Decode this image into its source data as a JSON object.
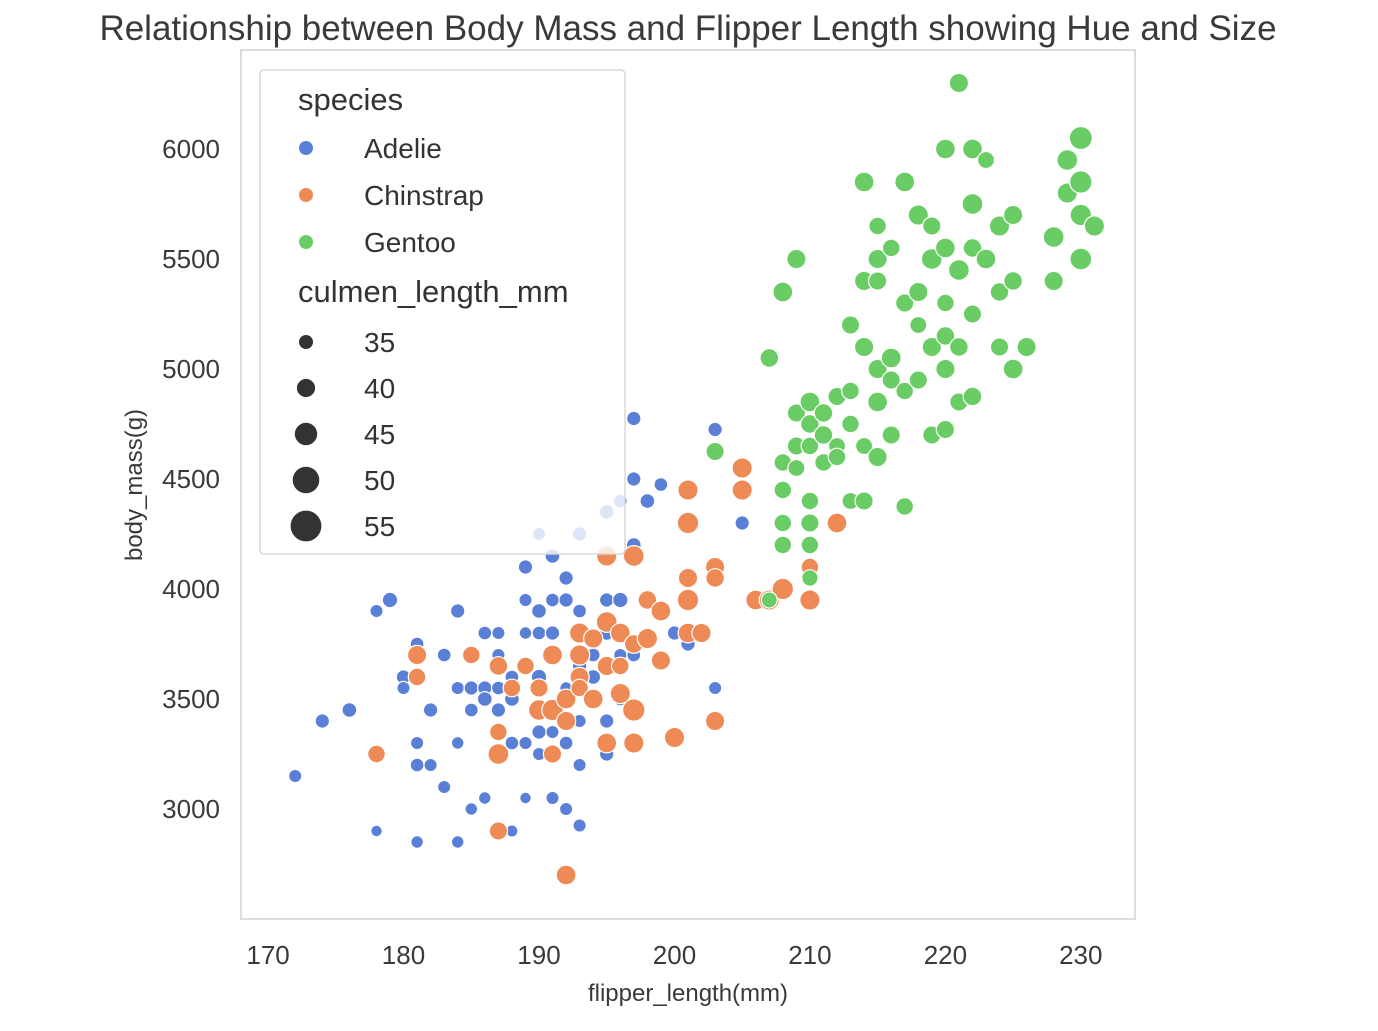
{
  "chart_data": {
    "type": "scatter",
    "title": "Relationship between Body Mass and Flipper Length showing Hue and Size",
    "xlabel": "flipper_length(mm)",
    "ylabel": "body_mass(g)",
    "xlim": [
      168,
      234
    ],
    "ylim": [
      2500,
      6450
    ],
    "xticks": [
      170,
      180,
      190,
      200,
      210,
      220,
      230
    ],
    "yticks": [
      3000,
      3500,
      4000,
      4500,
      5000,
      5500,
      6000
    ],
    "grid": false,
    "legend_position": "upper-left",
    "hue": {
      "title": "species",
      "entries": [
        {
          "name": "Adelie",
          "color": "#5a7fd6"
        },
        {
          "name": "Chinstrap",
          "color": "#ee8a55"
        },
        {
          "name": "Gentoo",
          "color": "#6acc65"
        }
      ]
    },
    "size": {
      "title": "culmen_length_mm",
      "entries": [
        {
          "label": "35",
          "value": 35
        },
        {
          "label": "40",
          "value": 40
        },
        {
          "label": "45",
          "value": 45
        },
        {
          "label": "50",
          "value": 50
        },
        {
          "label": "55",
          "value": 55
        }
      ]
    },
    "series": [
      {
        "name": "Adelie",
        "points": [
          [
            172,
            3150,
            38
          ],
          [
            174,
            3400,
            40
          ],
          [
            176,
            3450,
            41
          ],
          [
            178,
            3900,
            38
          ],
          [
            178,
            2900,
            35
          ],
          [
            179,
            3950,
            42
          ],
          [
            180,
            3600,
            40
          ],
          [
            180,
            3550,
            38
          ],
          [
            181,
            3300,
            38
          ],
          [
            181,
            3750,
            39
          ],
          [
            181,
            3200,
            39
          ],
          [
            181,
            2850,
            37
          ],
          [
            182,
            3450,
            40
          ],
          [
            182,
            3200,
            38
          ],
          [
            183,
            3700,
            39
          ],
          [
            183,
            3100,
            38
          ],
          [
            184,
            3550,
            38
          ],
          [
            184,
            3300,
            37
          ],
          [
            184,
            3900,
            40
          ],
          [
            184,
            2850,
            37
          ],
          [
            185,
            3550,
            40
          ],
          [
            185,
            3700,
            41
          ],
          [
            185,
            3450,
            39
          ],
          [
            185,
            3000,
            37
          ],
          [
            186,
            3800,
            39
          ],
          [
            186,
            3550,
            40
          ],
          [
            186,
            3050,
            37
          ],
          [
            186,
            3500,
            41
          ],
          [
            187,
            3800,
            38
          ],
          [
            187,
            3550,
            39
          ],
          [
            187,
            3450,
            40
          ],
          [
            187,
            3700,
            38
          ],
          [
            188,
            3500,
            41
          ],
          [
            188,
            3300,
            39
          ],
          [
            188,
            3600,
            39
          ],
          [
            188,
            2900,
            36
          ],
          [
            189,
            3950,
            38
          ],
          [
            189,
            4100,
            40
          ],
          [
            189,
            3800,
            37
          ],
          [
            189,
            3300,
            38
          ],
          [
            189,
            3050,
            35
          ],
          [
            190,
            3800,
            39
          ],
          [
            190,
            3900,
            41
          ],
          [
            190,
            3350,
            40
          ],
          [
            190,
            3600,
            42
          ],
          [
            190,
            3250,
            38
          ],
          [
            190,
            4250,
            38
          ],
          [
            191,
            3950,
            39
          ],
          [
            191,
            3800,
            40
          ],
          [
            191,
            4150,
            41
          ],
          [
            191,
            3050,
            38
          ],
          [
            191,
            3450,
            37
          ],
          [
            191,
            3350,
            38
          ],
          [
            192,
            4050,
            40
          ],
          [
            192,
            3550,
            37
          ],
          [
            192,
            3300,
            39
          ],
          [
            192,
            3000,
            38
          ],
          [
            192,
            3950,
            40
          ],
          [
            193,
            3650,
            40
          ],
          [
            193,
            3900,
            39
          ],
          [
            193,
            3400,
            38
          ],
          [
            193,
            3200,
            38
          ],
          [
            193,
            2925,
            38
          ],
          [
            193,
            4250,
            40
          ],
          [
            194,
            3600,
            41
          ],
          [
            194,
            3700,
            39
          ],
          [
            195,
            3800,
            41
          ],
          [
            195,
            3400,
            40
          ],
          [
            195,
            3950,
            40
          ],
          [
            195,
            4350,
            41
          ],
          [
            195,
            3250,
            40
          ],
          [
            195,
            3300,
            39
          ],
          [
            196,
            3700,
            38
          ],
          [
            196,
            3950,
            42
          ],
          [
            196,
            3500,
            39
          ],
          [
            196,
            4400,
            39
          ],
          [
            197,
            4500,
            40
          ],
          [
            197,
            4200,
            41
          ],
          [
            197,
            3700,
            39
          ],
          [
            197,
            4775,
            40
          ],
          [
            198,
            4400,
            41
          ],
          [
            199,
            4475,
            39
          ],
          [
            200,
            3800,
            40
          ],
          [
            201,
            3750,
            40
          ],
          [
            203,
            4725,
            40
          ],
          [
            203,
            3550,
            38
          ],
          [
            205,
            4300,
            40
          ]
        ]
      },
      {
        "name": "Chinstrap",
        "points": [
          [
            178,
            3250,
            46
          ],
          [
            181,
            3700,
            49
          ],
          [
            181,
            3600,
            46
          ],
          [
            185,
            3700,
            46
          ],
          [
            187,
            3650,
            48
          ],
          [
            187,
            3350,
            46
          ],
          [
            187,
            3250,
            52
          ],
          [
            187,
            2900,
            47
          ],
          [
            188,
            3550,
            46
          ],
          [
            189,
            3650,
            46
          ],
          [
            190,
            3550,
            47
          ],
          [
            190,
            3450,
            52
          ],
          [
            191,
            3700,
            50
          ],
          [
            191,
            3450,
            53
          ],
          [
            191,
            3250,
            47
          ],
          [
            192,
            3500,
            50
          ],
          [
            192,
            3400,
            49
          ],
          [
            192,
            2700,
            50
          ],
          [
            193,
            3800,
            51
          ],
          [
            193,
            3700,
            51
          ],
          [
            193,
            3600,
            49
          ],
          [
            193,
            3550,
            46
          ],
          [
            194,
            3500,
            50
          ],
          [
            194,
            3775,
            49
          ],
          [
            195,
            3850,
            52
          ],
          [
            195,
            3650,
            49
          ],
          [
            195,
            3300,
            50
          ],
          [
            195,
            4150,
            51
          ],
          [
            196,
            3650,
            46
          ],
          [
            196,
            3525,
            51
          ],
          [
            196,
            3800,
            50
          ],
          [
            197,
            4150,
            52
          ],
          [
            197,
            3750,
            48
          ],
          [
            197,
            3450,
            55
          ],
          [
            197,
            3300,
            51
          ],
          [
            198,
            3950,
            48
          ],
          [
            198,
            3775,
            51
          ],
          [
            199,
            3900,
            50
          ],
          [
            199,
            3675,
            49
          ],
          [
            200,
            3325,
            51
          ],
          [
            201,
            3800,
            50
          ],
          [
            201,
            4050,
            49
          ],
          [
            201,
            3950,
            53
          ],
          [
            201,
            4450,
            51
          ],
          [
            201,
            4300,
            53
          ],
          [
            202,
            3800,
            49
          ],
          [
            203,
            3400,
            49
          ],
          [
            203,
            4100,
            49
          ],
          [
            203,
            4050,
            48
          ],
          [
            205,
            4550,
            51
          ],
          [
            205,
            4450,
            51
          ],
          [
            206,
            3950,
            50
          ],
          [
            207,
            3950,
            51
          ],
          [
            208,
            4000,
            53
          ],
          [
            210,
            4100,
            46
          ],
          [
            210,
            3950,
            51
          ],
          [
            212,
            4300,
            50
          ]
        ]
      },
      {
        "name": "Gentoo",
        "points": [
          [
            203,
            4625,
            47
          ],
          [
            207,
            5050,
            48
          ],
          [
            207,
            3950,
            43
          ],
          [
            208,
            5350,
            50
          ],
          [
            208,
            4575,
            46
          ],
          [
            208,
            4450,
            46
          ],
          [
            208,
            4300,
            46
          ],
          [
            208,
            4200,
            46
          ],
          [
            209,
            5500,
            49
          ],
          [
            209,
            4650,
            47
          ],
          [
            209,
            4800,
            47
          ],
          [
            209,
            4550,
            45
          ],
          [
            210,
            4400,
            46
          ],
          [
            210,
            4300,
            47
          ],
          [
            210,
            4200,
            46
          ],
          [
            210,
            4050,
            44
          ],
          [
            210,
            4750,
            48
          ],
          [
            210,
            4650,
            46
          ],
          [
            210,
            4850,
            50
          ],
          [
            211,
            4575,
            46
          ],
          [
            211,
            4700,
            48
          ],
          [
            211,
            4800,
            48
          ],
          [
            212,
            4650,
            45
          ],
          [
            212,
            4875,
            47
          ],
          [
            212,
            4600,
            46
          ],
          [
            213,
            4750,
            46
          ],
          [
            213,
            5200,
            47
          ],
          [
            213,
            4400,
            45
          ],
          [
            213,
            4900,
            46
          ],
          [
            214,
            5850,
            50
          ],
          [
            214,
            5400,
            49
          ],
          [
            214,
            5100,
            49
          ],
          [
            214,
            4650,
            45
          ],
          [
            214,
            4400,
            47
          ],
          [
            215,
            5650,
            46
          ],
          [
            215,
            5500,
            49
          ],
          [
            215,
            5400,
            47
          ],
          [
            215,
            5000,
            49
          ],
          [
            215,
            4850,
            50
          ],
          [
            215,
            4600,
            49
          ],
          [
            216,
            4950,
            47
          ],
          [
            216,
            5050,
            50
          ],
          [
            216,
            4700,
            47
          ],
          [
            216,
            5550,
            46
          ],
          [
            217,
            5850,
            50
          ],
          [
            217,
            5300,
            47
          ],
          [
            217,
            4900,
            46
          ],
          [
            217,
            4375,
            46
          ],
          [
            218,
            5700,
            51
          ],
          [
            218,
            5350,
            49
          ],
          [
            218,
            5200,
            45
          ],
          [
            218,
            4950,
            47
          ],
          [
            219,
            5500,
            52
          ],
          [
            219,
            5100,
            49
          ],
          [
            219,
            4700,
            47
          ],
          [
            219,
            5650,
            47
          ],
          [
            220,
            6000,
            50
          ],
          [
            220,
            5550,
            50
          ],
          [
            220,
            5300,
            46
          ],
          [
            220,
            5150,
            48
          ],
          [
            220,
            5000,
            49
          ],
          [
            220,
            4725,
            47
          ],
          [
            221,
            6300,
            49
          ],
          [
            221,
            5450,
            52
          ],
          [
            221,
            5100,
            48
          ],
          [
            221,
            4850,
            47
          ],
          [
            222,
            6000,
            50
          ],
          [
            222,
            5750,
            52
          ],
          [
            222,
            5550,
            48
          ],
          [
            222,
            5250,
            47
          ],
          [
            222,
            4875,
            48
          ],
          [
            223,
            5950,
            45
          ],
          [
            223,
            5500,
            50
          ],
          [
            224,
            5650,
            51
          ],
          [
            224,
            5350,
            48
          ],
          [
            224,
            5100,
            47
          ],
          [
            225,
            5700,
            49
          ],
          [
            225,
            5400,
            48
          ],
          [
            225,
            5000,
            50
          ],
          [
            226,
            5100,
            49
          ],
          [
            228,
            5600,
            52
          ],
          [
            228,
            5400,
            49
          ],
          [
            229,
            5800,
            51
          ],
          [
            229,
            5950,
            52
          ],
          [
            230,
            6050,
            56
          ],
          [
            230,
            5850,
            55
          ],
          [
            230,
            5700,
            53
          ],
          [
            230,
            5500,
            54
          ],
          [
            231,
            5650,
            51
          ]
        ]
      }
    ]
  }
}
